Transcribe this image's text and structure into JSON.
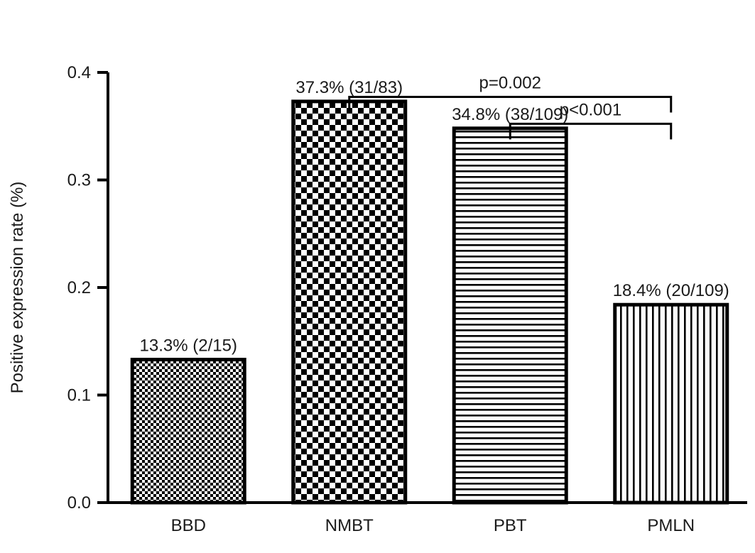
{
  "chart_data": {
    "type": "bar",
    "ylabel": "Positive expression rate (%)",
    "xlabel": "",
    "ylim": [
      0,
      0.4
    ],
    "yticks": [
      "0.0",
      "0.1",
      "0.2",
      "0.3",
      "0.4"
    ],
    "categories": [
      "BBD",
      "NMBT",
      "PBT",
      "PMLN"
    ],
    "values": [
      0.133,
      0.373,
      0.348,
      0.184
    ],
    "bar_labels": [
      "13.3% (2/15)",
      "37.3% (31/83)",
      "34.8% (38/109)",
      "18.4% (20/109)"
    ],
    "fill_patterns": [
      "fine-checker",
      "coarse-checker",
      "horizontal-stripes",
      "vertical-stripes"
    ],
    "grid": false,
    "significance": [
      {
        "from": "NMBT",
        "to": "PMLN",
        "label": "p=0.002",
        "level": 0.397
      },
      {
        "from": "PBT",
        "to": "PMLN",
        "label": "p<0.001",
        "level": 0.372
      }
    ],
    "colors": {
      "bar_stroke": "#000000",
      "pattern": "#000000",
      "background": "#ffffff"
    }
  }
}
